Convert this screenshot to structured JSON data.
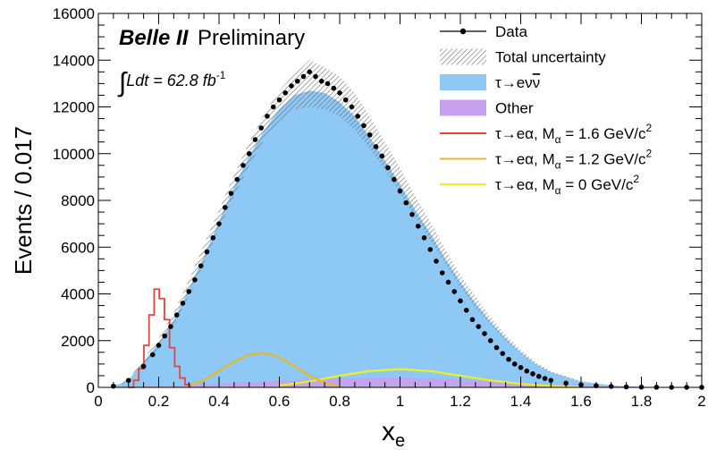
{
  "chart_data": {
    "type": "histogram",
    "experiment_label": {
      "bold": "Belle II",
      "rest": "Preliminary"
    },
    "luminosity_label": {
      "integral": "∫",
      "text": "Ldt = 62.8 fb",
      "sup": "-1"
    },
    "xlabel": {
      "main": "x",
      "sub": "e"
    },
    "ylabel": "Events / 0.017",
    "xlim": [
      0,
      2
    ],
    "ylim": [
      0,
      16000
    ],
    "xticks": [
      "0",
      "0.2",
      "0.4",
      "0.6",
      "0.8",
      "1",
      "1.2",
      "1.4",
      "1.6",
      "1.8",
      "2"
    ],
    "yticks": [
      "0",
      "2000",
      "4000",
      "6000",
      "8000",
      "10000",
      "12000",
      "14000",
      "16000"
    ],
    "bin_width": 0.017,
    "legend": [
      {
        "type": "data",
        "label": "Data",
        "color": "#000000"
      },
      {
        "type": "hatch",
        "label": "Total uncertainty",
        "color": "#555555"
      },
      {
        "type": "fill",
        "label": "τ→eνν̄",
        "label_parts": [
          "τ→eν",
          "ν"
        ],
        "color": "#8ec9f5"
      },
      {
        "type": "fill",
        "label": "Other",
        "color": "#c8a0f0"
      },
      {
        "type": "line",
        "label": "τ→eα, Mα = 1.6 GeV/c2",
        "label_parts": [
          "τ→eα, M",
          "α",
          " = 1.6 GeV/c",
          "2"
        ],
        "color": "#e8443a"
      },
      {
        "type": "line",
        "label": "τ→eα, Mα = 1.2 GeV/c2",
        "label_parts": [
          "τ→eα, M",
          "α",
          " = 1.2 GeV/c",
          "2"
        ],
        "color": "#e8b820"
      },
      {
        "type": "line",
        "label": "τ→eα, Mα = 0 GeV/c2",
        "label_parts": [
          "τ→eα, M",
          "α",
          " = 0 GeV/c",
          "2"
        ],
        "color": "#f0f020"
      }
    ],
    "series": [
      {
        "name": "Data",
        "kind": "points",
        "x": [
          0.05,
          0.1,
          0.15,
          0.18,
          0.2,
          0.22,
          0.24,
          0.26,
          0.28,
          0.3,
          0.32,
          0.34,
          0.36,
          0.38,
          0.4,
          0.42,
          0.44,
          0.46,
          0.48,
          0.5,
          0.52,
          0.54,
          0.56,
          0.58,
          0.6,
          0.62,
          0.64,
          0.66,
          0.68,
          0.7,
          0.72,
          0.74,
          0.76,
          0.78,
          0.8,
          0.82,
          0.84,
          0.86,
          0.88,
          0.9,
          0.92,
          0.94,
          0.96,
          0.98,
          1.0,
          1.02,
          1.04,
          1.06,
          1.08,
          1.1,
          1.12,
          1.14,
          1.16,
          1.18,
          1.2,
          1.22,
          1.24,
          1.26,
          1.28,
          1.3,
          1.32,
          1.34,
          1.36,
          1.38,
          1.4,
          1.42,
          1.44,
          1.46,
          1.48,
          1.5,
          1.55,
          1.6,
          1.65,
          1.7,
          1.75,
          1.8,
          1.85,
          1.9,
          1.95,
          2.0
        ],
        "y": [
          50,
          300,
          900,
          1400,
          1800,
          2200,
          2600,
          3100,
          3600,
          4100,
          4600,
          5200,
          5800,
          6400,
          7000,
          7700,
          8300,
          8900,
          9500,
          10000,
          10600,
          11100,
          11600,
          12000,
          12300,
          12600,
          12900,
          13100,
          13300,
          13500,
          13300,
          13100,
          13000,
          12800,
          12600,
          12300,
          12000,
          11600,
          11200,
          10800,
          10300,
          9900,
          9400,
          8900,
          8400,
          7900,
          7400,
          6900,
          6400,
          5900,
          5400,
          4900,
          4500,
          4100,
          3700,
          3300,
          2900,
          2600,
          2300,
          2000,
          1700,
          1450,
          1200,
          1000,
          850,
          700,
          580,
          470,
          380,
          300,
          180,
          110,
          70,
          40,
          20,
          12,
          6,
          3,
          2,
          1
        ]
      },
      {
        "name": "τ→eνν̄",
        "kind": "filled",
        "x": [
          0.05,
          0.1,
          0.15,
          0.2,
          0.25,
          0.3,
          0.35,
          0.4,
          0.45,
          0.5,
          0.55,
          0.6,
          0.65,
          0.7,
          0.75,
          0.8,
          0.85,
          0.9,
          0.95,
          1.0,
          1.05,
          1.1,
          1.15,
          1.2,
          1.25,
          1.3,
          1.35,
          1.4,
          1.45,
          1.5,
          1.6,
          1.7,
          1.8,
          1.9,
          2.0
        ],
        "y": [
          40,
          300,
          1100,
          1900,
          2900,
          4200,
          5600,
          7100,
          8600,
          9900,
          11000,
          11900,
          12500,
          12700,
          12600,
          12200,
          11600,
          10700,
          9700,
          8700,
          7600,
          6600,
          5500,
          4500,
          3600,
          2800,
          2100,
          1500,
          1000,
          650,
          250,
          80,
          20,
          5,
          0
        ]
      },
      {
        "name": "Other",
        "kind": "filled",
        "x": [
          0.05,
          0.2,
          0.4,
          0.6,
          0.8,
          1.0,
          1.2,
          1.4,
          1.6,
          1.8,
          2.0
        ],
        "y": [
          0,
          50,
          150,
          280,
          380,
          420,
          330,
          200,
          80,
          20,
          0
        ]
      },
      {
        "name": "Total uncertainty",
        "kind": "band",
        "x": [
          0.05,
          0.1,
          0.15,
          0.2,
          0.25,
          0.3,
          0.35,
          0.4,
          0.45,
          0.5,
          0.55,
          0.6,
          0.65,
          0.7,
          0.75,
          0.8,
          0.85,
          0.9,
          0.95,
          1.0,
          1.05,
          1.1,
          1.15,
          1.2,
          1.25,
          1.3,
          1.35,
          1.4,
          1.45,
          1.5,
          1.6,
          1.7,
          1.8,
          1.9,
          2.0
        ],
        "low": [
          20,
          250,
          1000,
          1700,
          2700,
          3900,
          5300,
          6800,
          8200,
          9500,
          10600,
          11400,
          11900,
          12000,
          11900,
          11600,
          11000,
          10200,
          9300,
          8300,
          7300,
          6300,
          5300,
          4300,
          3400,
          2700,
          2000,
          1450,
          950,
          620,
          240,
          75,
          18,
          4,
          0
        ],
        "high": [
          60,
          350,
          1200,
          2100,
          3200,
          4600,
          6100,
          7600,
          9100,
          10500,
          11700,
          12700,
          13400,
          14000,
          13700,
          13300,
          12600,
          11600,
          10500,
          9400,
          8200,
          7100,
          5900,
          4800,
          3900,
          3000,
          2250,
          1600,
          1080,
          700,
          270,
          90,
          25,
          6,
          0
        ]
      },
      {
        "name": "τ→eα, Mα = 1.6 GeV/c2",
        "kind": "step",
        "x": [
          0.1,
          0.117,
          0.134,
          0.151,
          0.168,
          0.185,
          0.202,
          0.219,
          0.236,
          0.253,
          0.27,
          0.287,
          0.304
        ],
        "y": [
          0,
          300,
          800,
          1800,
          3100,
          4200,
          3800,
          2900,
          1700,
          900,
          400,
          120,
          0
        ]
      },
      {
        "name": "τ→eα, Mα = 1.2 GeV/c2",
        "kind": "line",
        "x": [
          0.3,
          0.35,
          0.4,
          0.45,
          0.5,
          0.55,
          0.6,
          0.65,
          0.7,
          0.75,
          0.8
        ],
        "y": [
          100,
          300,
          700,
          1100,
          1400,
          1480,
          1300,
          900,
          500,
          200,
          50
        ]
      },
      {
        "name": "τ→eα, Mα = 0 GeV/c2",
        "kind": "line",
        "x": [
          0.6,
          0.7,
          0.8,
          0.9,
          1.0,
          1.1,
          1.2,
          1.3,
          1.4,
          1.5,
          1.6
        ],
        "y": [
          80,
          250,
          500,
          700,
          780,
          700,
          500,
          300,
          150,
          60,
          20
        ]
      }
    ]
  }
}
